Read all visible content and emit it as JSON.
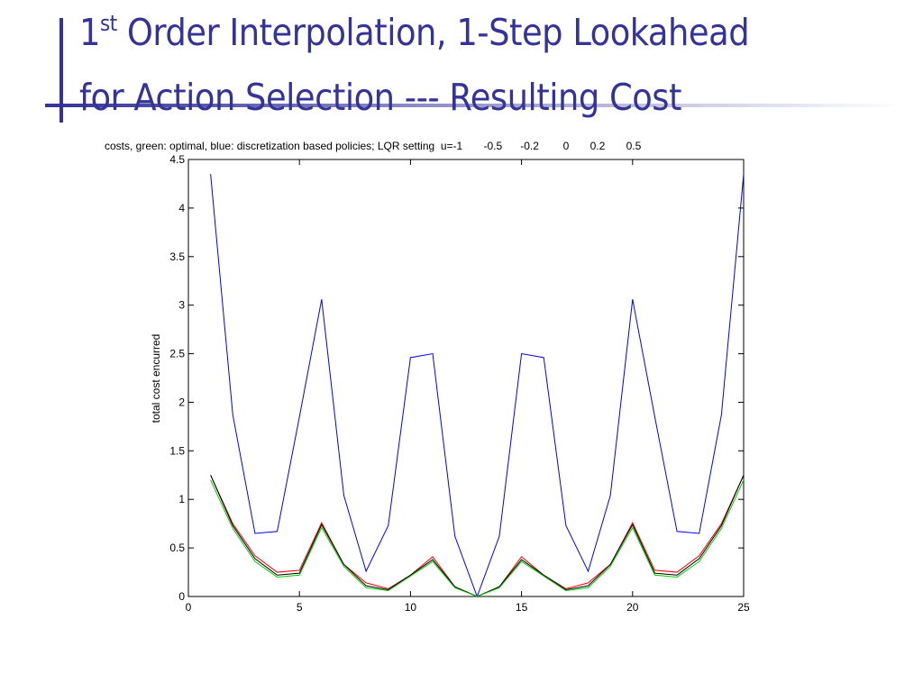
{
  "slide": {
    "title_number": "1",
    "title_superscript": "st",
    "title_rest": " Order Interpolation, 1-Step Lookahead",
    "title_line2": "for Action Selection --- Resulting Cost"
  },
  "chart_data": {
    "type": "line",
    "title": "costs, green: optimal, blue: discretization based policies; LQR setting  u=-1       -0.5      -0.2        0       0.2       0.5",
    "y_label": "total cost encurred",
    "x": [
      1,
      2,
      3,
      4,
      5,
      6,
      7,
      8,
      9,
      10,
      11,
      12,
      13,
      14,
      15,
      16,
      17,
      18,
      19,
      20,
      21,
      22,
      23,
      24,
      25
    ],
    "series": [
      {
        "color": "#0000ff",
        "values": [
          4.35,
          1.87,
          0.65,
          0.67,
          1.85,
          3.06,
          1.04,
          0.26,
          0.73,
          2.46,
          2.5,
          0.62,
          0,
          0.62,
          2.5,
          2.46,
          0.73,
          0.26,
          1.04,
          3.06,
          1.85,
          0.67,
          0.65,
          1.87,
          4.35
        ]
      },
      {
        "color": "#ff0000",
        "values": [
          1.25,
          0.75,
          0.42,
          0.25,
          0.27,
          0.76,
          0.33,
          0.14,
          0.08,
          0.22,
          0.41,
          0.1,
          0,
          0.1,
          0.41,
          0.22,
          0.08,
          0.14,
          0.33,
          0.76,
          0.27,
          0.25,
          0.42,
          0.75,
          1.25
        ]
      },
      {
        "color": "#000000",
        "values": [
          1.25,
          0.73,
          0.39,
          0.22,
          0.24,
          0.74,
          0.33,
          0.11,
          0.07,
          0.22,
          0.38,
          0.1,
          0,
          0.1,
          0.38,
          0.22,
          0.07,
          0.11,
          0.33,
          0.74,
          0.24,
          0.22,
          0.39,
          0.73,
          1.25
        ]
      },
      {
        "color": "#00cc00",
        "values": [
          1.2,
          0.7,
          0.36,
          0.2,
          0.22,
          0.71,
          0.31,
          0.09,
          0.06,
          0.21,
          0.36,
          0.09,
          0,
          0.09,
          0.36,
          0.21,
          0.06,
          0.09,
          0.31,
          0.71,
          0.22,
          0.2,
          0.36,
          0.7,
          1.2
        ]
      }
    ],
    "xlim": [
      0,
      25
    ],
    "xticks": [
      0,
      5,
      10,
      15,
      20,
      25
    ],
    "ylim": [
      0,
      4.5
    ],
    "yticks": [
      0,
      0.5,
      1,
      1.5,
      2,
      2.5,
      3,
      3.5,
      4,
      4.5
    ]
  }
}
